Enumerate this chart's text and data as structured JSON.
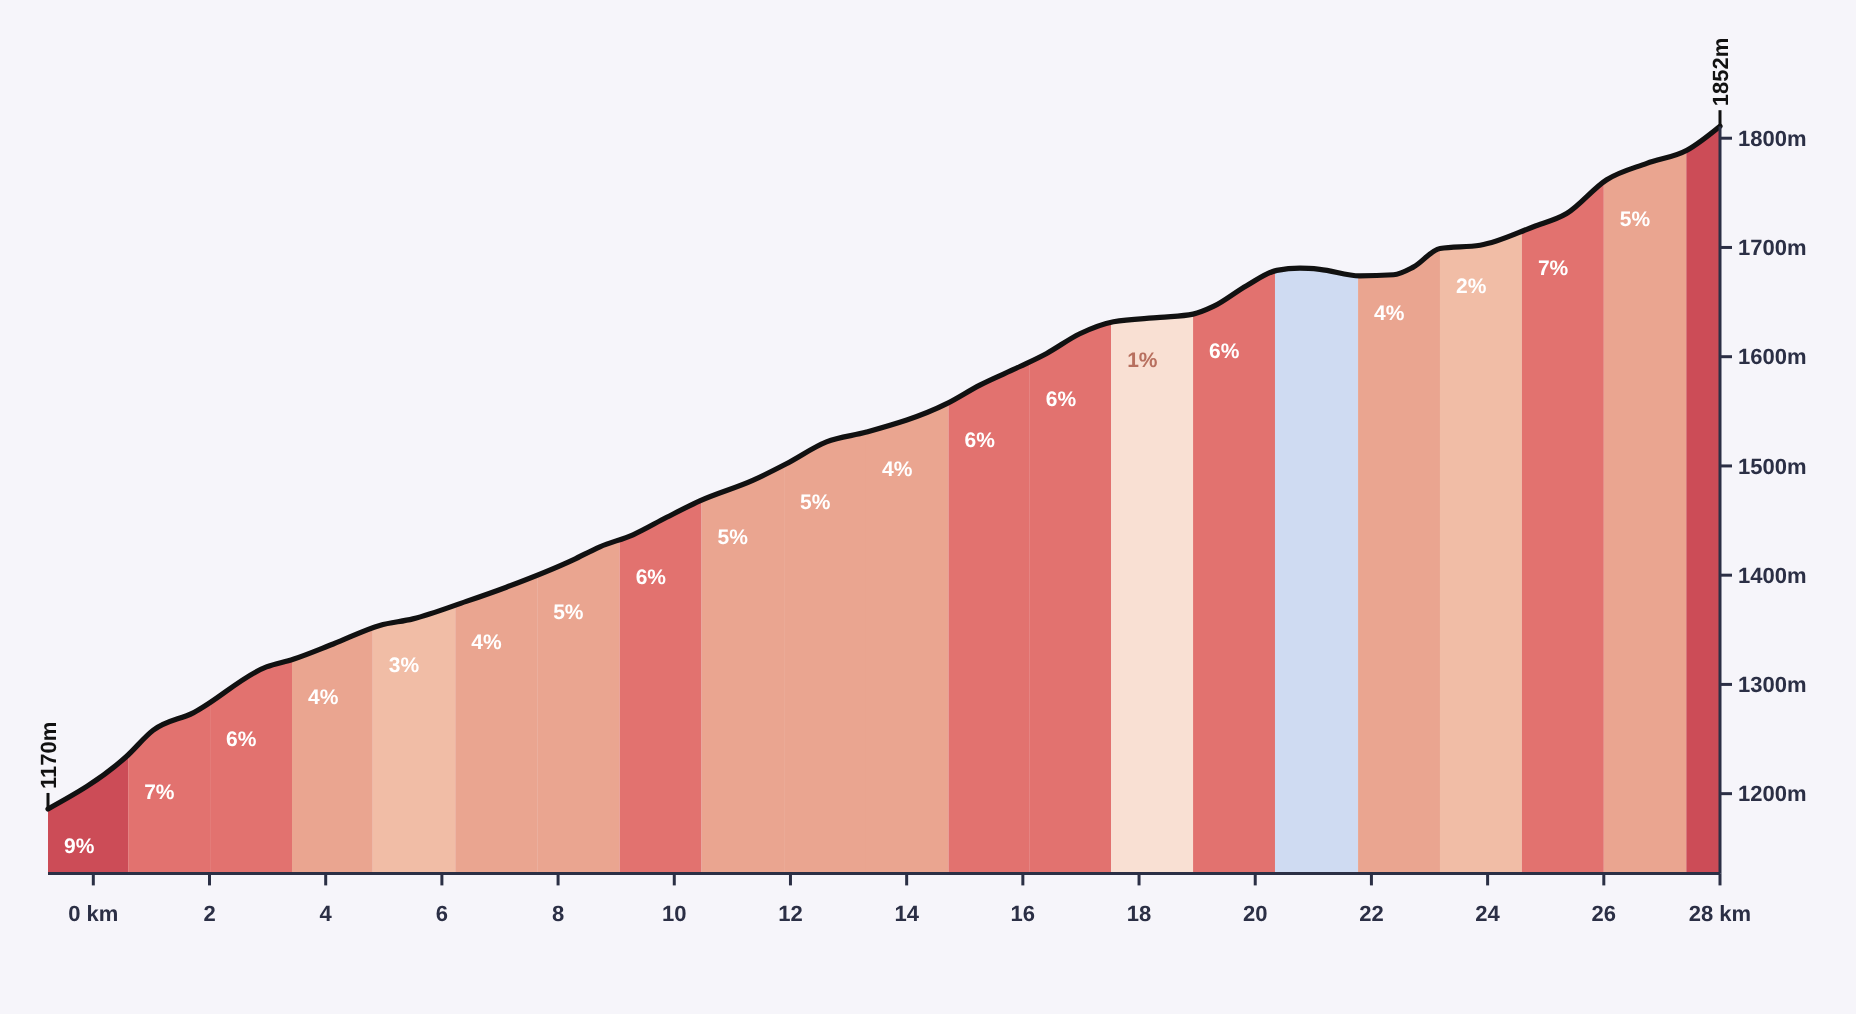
{
  "chart_data": {
    "type": "line",
    "xlim": [
      -0.78,
      28
    ],
    "ylim": [
      1127,
      1811
    ],
    "xticks": [
      {
        "value": 0,
        "label": "0 km"
      },
      2,
      4,
      6,
      8,
      10,
      12,
      14,
      16,
      18,
      20,
      22,
      24,
      26,
      {
        "value": 28,
        "label": "28 km"
      }
    ],
    "yticks": [
      {
        "value": 1200,
        "label": "1200m"
      },
      {
        "value": 1300,
        "label": "1300m"
      },
      {
        "value": 1400,
        "label": "1400m"
      },
      {
        "value": 1500,
        "label": "1500m"
      },
      {
        "value": 1600,
        "label": "1600m"
      },
      {
        "value": 1700,
        "label": "1700m"
      },
      {
        "value": 1800,
        "label": "1800m"
      }
    ],
    "grid": false,
    "marker": "none",
    "line_style": "solid",
    "series": [
      {
        "color": "#111111",
        "x": [
          -0.78,
          0.57,
          1.03,
          1.72,
          2.98,
          3.44,
          4.13,
          4.93,
          5.5,
          6.42,
          7.11,
          8.26,
          8.72,
          9.29,
          9.87,
          10.44,
          11.36,
          11.93,
          12.62,
          13.31,
          14.69,
          15.26,
          15.95,
          16.41,
          16.98,
          17.56,
          18.36,
          18.93,
          19.28,
          19.85,
          20.37,
          20.77,
          21.11,
          21.8,
          22.38,
          22.72,
          23.18,
          23.87,
          24.79,
          25.36,
          26.05,
          26.74,
          27.43,
          28
        ],
        "values": [
          1186,
          1234,
          1258,
          1274,
          1316,
          1323,
          1337,
          1354,
          1360,
          1376,
          1389,
          1414,
          1426,
          1437,
          1453,
          1468,
          1487,
          1502,
          1522,
          1531,
          1557,
          1574,
          1591,
          1603,
          1621,
          1632,
          1636,
          1639,
          1646,
          1665,
          1679,
          1681,
          1680,
          1674,
          1675,
          1682,
          1699,
          1702,
          1719,
          1731,
          1762,
          1777,
          1789,
          1811
        ]
      }
    ],
    "bands": [
      {
        "axis": "x",
        "from": -0.78,
        "to": 0.6,
        "label": "9%",
        "color": "#cc4c57"
      },
      {
        "axis": "x",
        "from": 0.6,
        "to": 2.01,
        "label": "7%",
        "color": "#e2726f"
      },
      {
        "axis": "x",
        "from": 2.01,
        "to": 3.42,
        "label": "6%",
        "color": "#e2726f"
      },
      {
        "axis": "x",
        "from": 3.42,
        "to": 4.81,
        "label": "4%",
        "color": "#eaa590"
      },
      {
        "axis": "x",
        "from": 4.81,
        "to": 6.23,
        "label": "3%",
        "color": "#f1bda6"
      },
      {
        "axis": "x",
        "from": 6.23,
        "to": 7.64,
        "label": "4%",
        "color": "#eaa590"
      },
      {
        "axis": "x",
        "from": 7.64,
        "to": 9.06,
        "label": "5%",
        "color": "#eaa590"
      },
      {
        "axis": "x",
        "from": 9.06,
        "to": 10.47,
        "label": "6%",
        "color": "#e2726f"
      },
      {
        "axis": "x",
        "from": 10.47,
        "to": 11.89,
        "label": "5%",
        "color": "#eaa590"
      },
      {
        "axis": "x",
        "from": 11.89,
        "to": 13.3,
        "label": "5%",
        "color": "#eaa590"
      },
      {
        "axis": "x",
        "from": 13.3,
        "to": 14.72,
        "label": "4%",
        "color": "#eaa590"
      },
      {
        "axis": "x",
        "from": 14.72,
        "to": 16.12,
        "label": "6%",
        "color": "#e2726f"
      },
      {
        "axis": "x",
        "from": 16.12,
        "to": 17.52,
        "label": "6%",
        "color": "#e2726f"
      },
      {
        "axis": "x",
        "from": 17.52,
        "to": 18.93,
        "label": "1%",
        "color": "#f9e0d3"
      },
      {
        "axis": "x",
        "from": 18.93,
        "to": 20.34,
        "label": "6%",
        "color": "#e2726f"
      },
      {
        "axis": "x",
        "from": 20.34,
        "to": 21.77,
        "label": null,
        "color": "#cfdbf2"
      },
      {
        "axis": "x",
        "from": 21.77,
        "to": 23.18,
        "label": "4%",
        "color": "#eaa590"
      },
      {
        "axis": "x",
        "from": 23.18,
        "to": 24.59,
        "label": "2%",
        "color": "#f1bda6"
      },
      {
        "axis": "x",
        "from": 24.59,
        "to": 26.0,
        "label": "7%",
        "color": "#e2726f"
      },
      {
        "axis": "x",
        "from": 26.0,
        "to": 27.42,
        "label": "5%",
        "color": "#eaa590"
      },
      {
        "axis": "x",
        "from": 27.42,
        "to": 28,
        "label": null,
        "color": "#cc4c57"
      }
    ],
    "annotations": [
      {
        "text": "1170m",
        "x": -0.78,
        "y": 1186
      },
      {
        "text": "1852m",
        "x": 28,
        "y": 1811
      }
    ]
  }
}
